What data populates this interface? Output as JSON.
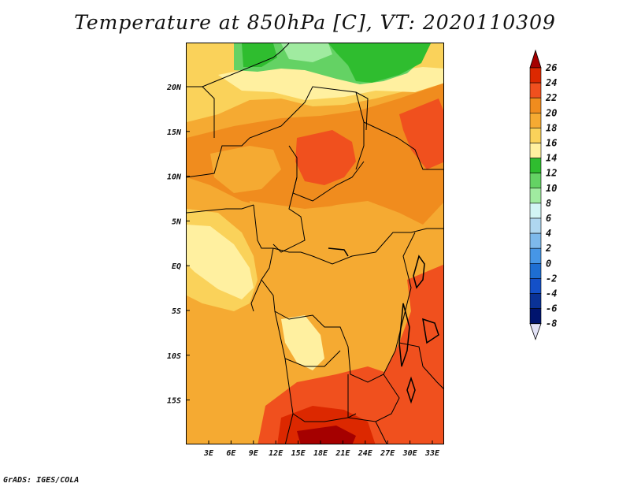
{
  "title": "Temperature at 850hPa [C], VT: 2020110309",
  "footer": "GrADS: IGES/COLA",
  "map": {
    "lat_labels": [
      "20N",
      "15N",
      "10N",
      "5N",
      "EQ",
      "5S",
      "10S",
      "15S"
    ],
    "lon_labels": [
      "3E",
      "6E",
      "9E",
      "12E",
      "15E",
      "18E",
      "21E",
      "24E",
      "27E",
      "30E",
      "33E"
    ]
  },
  "colorbar": {
    "levels": [
      "26",
      "24",
      "22",
      "20",
      "18",
      "16",
      "14",
      "12",
      "10",
      "8",
      "6",
      "4",
      "2",
      "0",
      "-2",
      "-4",
      "-6",
      "-8"
    ],
    "colors": [
      "#a50000",
      "#dc2800",
      "#f0501e",
      "#f08c1e",
      "#f5aa32",
      "#fad25a",
      "#fff0a0",
      "#2fbd2f",
      "#64d264",
      "#a0eba0",
      "#d2f5f5",
      "#afd7f0",
      "#7db9eb",
      "#4696e6",
      "#1e6ed2",
      "#1450c8",
      "#0a3296",
      "#00146e",
      "#e1e1f5"
    ]
  },
  "colors": {
    "green_high": "#2fbd2f",
    "green_mid": "#64d264",
    "green_light": "#a0eba0",
    "yellow": "#fad25a",
    "pale_yellow": "#fff0a0",
    "orange_light": "#f5aa32",
    "orange": "#f08c1e",
    "red_orange": "#f0501e",
    "red": "#dc2800",
    "dark_red": "#a50000"
  }
}
